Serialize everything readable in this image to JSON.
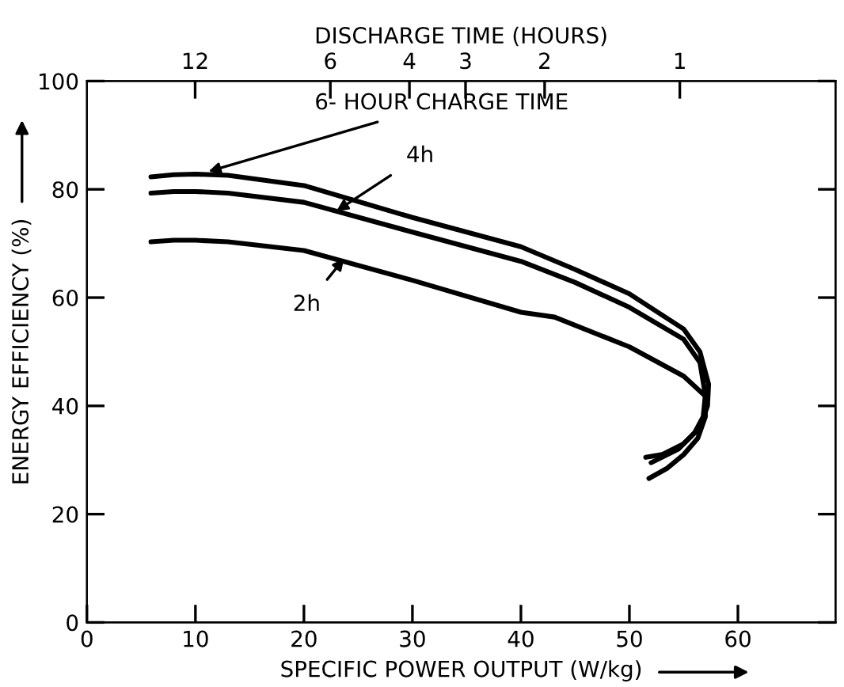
{
  "chart_data": {
    "type": "line",
    "xlabel": "SPECIFIC POWER OUTPUT (W/kg)",
    "ylabel": "ENERGY EFFICIENCY (%)",
    "x2label": "DISCHARGE TIME (HOURS)",
    "xlim": [
      0,
      69
    ],
    "ylim": [
      0,
      100
    ],
    "xticks": [
      0,
      10,
      20,
      30,
      40,
      50,
      60
    ],
    "yticks": [
      0,
      20,
      40,
      60,
      80,
      100
    ],
    "x2lim": [
      20.9,
      0.45
    ],
    "log": "x2",
    "x2ticks": [
      12,
      6,
      4,
      3,
      2,
      1
    ],
    "grid": false,
    "marker": "none",
    "line_style": "solid",
    "series": [
      {
        "color": "#000000",
        "x": [
          5.9,
          8,
          10,
          13,
          20,
          30,
          40,
          45,
          50,
          55,
          56.5,
          57.3,
          57.2,
          56.5,
          55,
          53,
          51.5
        ],
        "values": [
          82.3,
          82.7,
          82.8,
          82.6,
          80.7,
          74.8,
          69.4,
          65.2,
          60.7,
          54.2,
          50,
          44,
          40,
          36,
          33,
          31,
          30.5
        ]
      },
      {
        "color": "#000000",
        "x": [
          5.9,
          8,
          10,
          13,
          20,
          30,
          40,
          45,
          50,
          55,
          56.5,
          57,
          56.8,
          56,
          54.5,
          52
        ],
        "values": [
          79.3,
          79.6,
          79.6,
          79.3,
          77.6,
          72.1,
          66.7,
          62.8,
          58.2,
          52.3,
          48,
          42,
          38,
          35,
          32,
          29.5
        ]
      },
      {
        "color": "#000000",
        "x": [
          5.9,
          8,
          10,
          13,
          20,
          30,
          40,
          43.1,
          50,
          55,
          57,
          57,
          56.3,
          55,
          53.5,
          51.8
        ],
        "values": [
          70.3,
          70.6,
          70.6,
          70.3,
          68.7,
          63.2,
          57.3,
          56.4,
          50.9,
          45.5,
          41.8,
          38,
          34,
          31,
          28.5,
          26.6
        ]
      }
    ],
    "annotations": [
      {
        "text": "6- HOUR CHARGE TIME",
        "x": 11.2,
        "y": 83.3
      },
      {
        "text": "4h",
        "x": 23,
        "y": 76
      },
      {
        "text": "2h",
        "x": 23.7,
        "y": 67.2
      }
    ]
  }
}
